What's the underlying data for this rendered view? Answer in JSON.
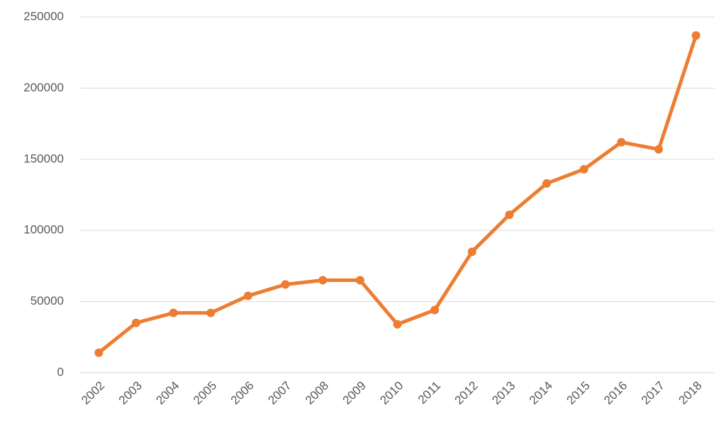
{
  "chart_data": {
    "type": "line",
    "categories": [
      "2002",
      "2003",
      "2004",
      "2005",
      "2006",
      "2007",
      "2008",
      "2009",
      "2010",
      "2011",
      "2012",
      "2013",
      "2014",
      "2015",
      "2016",
      "2017",
      "2018"
    ],
    "values": [
      14000,
      35000,
      42000,
      42000,
      54000,
      62000,
      65000,
      65000,
      34000,
      44000,
      85000,
      111000,
      133000,
      143000,
      162000,
      157000,
      237000
    ],
    "color": "#ed7d31",
    "ylim": [
      0,
      250000
    ],
    "yticks": [
      0,
      50000,
      100000,
      150000,
      200000,
      250000
    ],
    "grid": true
  }
}
